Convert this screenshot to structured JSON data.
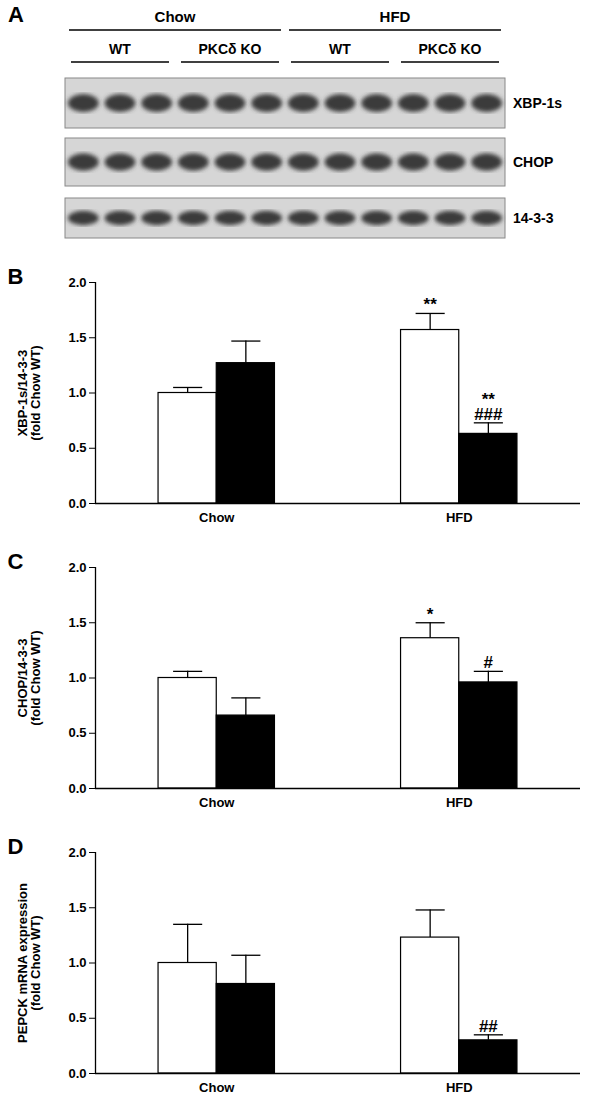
{
  "blot": {
    "panel_label": "A",
    "groups": [
      {
        "label": "Chow",
        "subgroups": [
          "WT",
          "PKCδ KO"
        ]
      },
      {
        "label": "HFD",
        "subgroups": [
          "WT",
          "PKCδ KO"
        ]
      }
    ],
    "lanes_per_subgroup": 3,
    "bands": [
      "XBP-1s",
      "CHOP",
      "14-3-3"
    ]
  },
  "chart_data": [
    {
      "type": "bar",
      "panel_label": "B",
      "y_label": [
        "XBP-1s/14-3-3",
        "(fold Chow WT)"
      ],
      "categories": [
        "Chow",
        "HFD"
      ],
      "series": [
        {
          "color": "#ffffff",
          "values": [
            1.0,
            1.57
          ],
          "errors": [
            0.05,
            0.15
          ],
          "annotations": [
            null,
            [
              "**"
            ]
          ]
        },
        {
          "color": "#000000",
          "values": [
            1.27,
            0.63
          ],
          "errors": [
            0.2,
            0.1
          ],
          "annotations": [
            null,
            [
              "**",
              "###"
            ]
          ]
        }
      ],
      "ylim": [
        0,
        2
      ],
      "yticks": [
        {
          "value": 0,
          "label": "0.0"
        },
        {
          "value": 0.5,
          "label": "0.5"
        },
        {
          "value": 1,
          "label": "1.0"
        },
        {
          "value": 1.5,
          "label": "1.5"
        },
        {
          "value": 2,
          "label": "2.0"
        }
      ]
    },
    {
      "type": "bar",
      "panel_label": "C",
      "y_label": [
        "CHOP/14-3-3",
        "(fold Chow WT)"
      ],
      "categories": [
        "Chow",
        "HFD"
      ],
      "series": [
        {
          "color": "#ffffff",
          "values": [
            1.0,
            1.36
          ],
          "errors": [
            0.06,
            0.14
          ],
          "annotations": [
            null,
            [
              "*"
            ]
          ]
        },
        {
          "color": "#000000",
          "values": [
            0.66,
            0.96
          ],
          "errors": [
            0.16,
            0.1
          ],
          "annotations": [
            null,
            [
              "#"
            ]
          ]
        }
      ],
      "ylim": [
        0,
        2
      ],
      "yticks": [
        {
          "value": 0,
          "label": "0.0"
        },
        {
          "value": 0.5,
          "label": "0.5"
        },
        {
          "value": 1,
          "label": "1.0"
        },
        {
          "value": 1.5,
          "label": "1.5"
        },
        {
          "value": 2,
          "label": "2.0"
        }
      ]
    },
    {
      "type": "bar",
      "panel_label": "D",
      "y_label": [
        "PEPCK mRNA expression",
        "(fold Chow WT)"
      ],
      "categories": [
        "Chow",
        "HFD"
      ],
      "series": [
        {
          "color": "#ffffff",
          "values": [
            1.0,
            1.23
          ],
          "errors": [
            0.35,
            0.25
          ],
          "annotations": [
            null,
            null
          ]
        },
        {
          "color": "#000000",
          "values": [
            0.81,
            0.3
          ],
          "errors": [
            0.26,
            0.05
          ],
          "annotations": [
            null,
            [
              "##"
            ]
          ]
        }
      ],
      "ylim": [
        0,
        2
      ],
      "yticks": [
        {
          "value": 0,
          "label": "0.0"
        },
        {
          "value": 0.5,
          "label": "0.5"
        },
        {
          "value": 1,
          "label": "1.0"
        },
        {
          "value": 1.5,
          "label": "1.5"
        },
        {
          "value": 2,
          "label": "2.0"
        }
      ]
    }
  ]
}
